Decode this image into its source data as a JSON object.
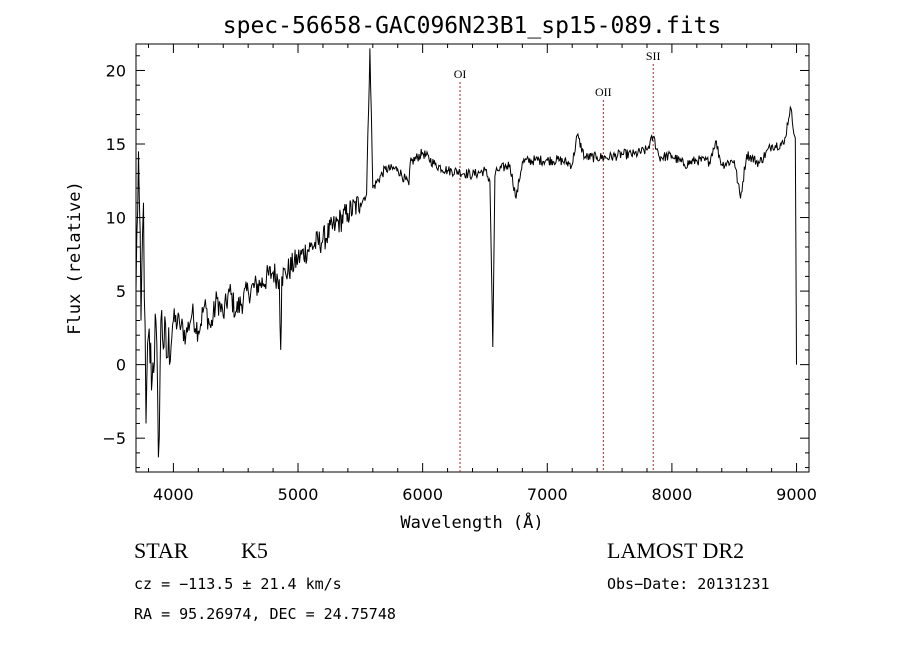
{
  "chart_data": {
    "type": "line",
    "title": "spec-56658-GAC096N23B1_sp15-089.fits",
    "xlabel": "Wavelength (Å)",
    "ylabel": "Flux (relative)",
    "xlim": [
      3700,
      9100
    ],
    "ylim": [
      -7.3,
      21.8
    ],
    "x_ticks": [
      4000,
      5000,
      6000,
      7000,
      8000,
      9000
    ],
    "y_ticks": [
      -5,
      0,
      5,
      10,
      15,
      20
    ],
    "grid": false,
    "series": [
      {
        "x": [
          3700,
          3720,
          3740,
          3760,
          3780,
          3800,
          3830,
          3860,
          3880,
          3900,
          3950,
          4000,
          4050,
          4100,
          4150,
          4200,
          4250,
          4300,
          4350,
          4400,
          4450,
          4500,
          4600,
          4700,
          4800,
          4850,
          4861,
          4870,
          4900,
          5000,
          5100,
          5200,
          5300,
          5400,
          5500,
          5550,
          5577,
          5600,
          5700,
          5800,
          5890,
          5900,
          6000,
          6100,
          6200,
          6300,
          6400,
          6500,
          6540,
          6563,
          6580,
          6600,
          6700,
          6750,
          6800,
          6900,
          7000,
          7100,
          7200,
          7240,
          7300,
          7400,
          7500,
          7600,
          7700,
          7800,
          7850,
          7900,
          8000,
          8100,
          8200,
          8300,
          8350,
          8400,
          8500,
          8550,
          8600,
          8700,
          8800,
          8900,
          8950,
          8990,
          9000
        ],
        "y": [
          5,
          14.5,
          3,
          11,
          -4,
          2,
          -1,
          3,
          -6.3,
          3,
          0.5,
          3,
          2.8,
          2,
          3.5,
          2.3,
          4,
          2.5,
          4.5,
          3.3,
          5,
          3.6,
          5,
          5.5,
          6.3,
          5.8,
          1,
          6,
          6.2,
          7.2,
          8,
          8.5,
          9.5,
          10.3,
          11,
          11.6,
          21.5,
          12,
          13.3,
          13.3,
          12.2,
          13.7,
          14.4,
          13.6,
          13.2,
          13.1,
          12.9,
          13.2,
          12.5,
          1.2,
          12.8,
          13.2,
          13.6,
          11.3,
          13.8,
          13.9,
          13.9,
          13.9,
          13.6,
          15.6,
          14.1,
          14.1,
          14.1,
          14.3,
          14.3,
          14.6,
          15.5,
          14.1,
          14.2,
          13.6,
          13.9,
          13.8,
          15.2,
          13.6,
          13.9,
          11.3,
          14.3,
          13.7,
          14.9,
          15,
          17.5,
          15.4,
          0
        ]
      }
    ],
    "lines": [
      {
        "label": "OI",
        "x": 6300
      },
      {
        "label": "OII",
        "x": 7450
      },
      {
        "label": "SII",
        "x": 7850
      }
    ]
  },
  "info": {
    "class": "STAR",
    "subclass": "K5",
    "survey": "LAMOST DR2",
    "cz": "cz = −113.5 ± 21.4 km/s",
    "obs_date": "Obs−Date: 20131231",
    "coords": "RA =  95.26974, DEC =  24.75748"
  }
}
